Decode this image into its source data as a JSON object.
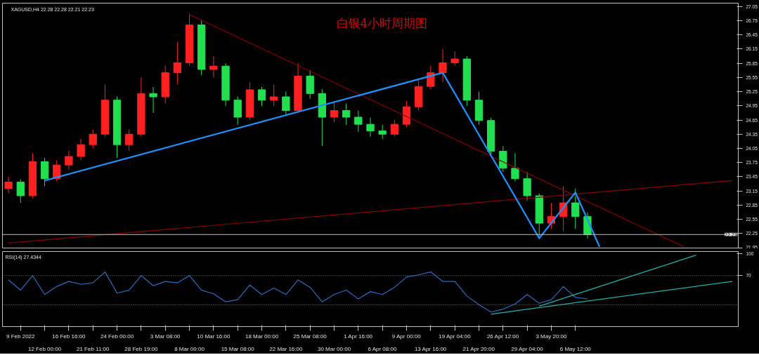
{
  "chart_data": [
    {
      "type": "candlestick",
      "title": "白银4小时周期图",
      "annotations": [
        "XAGUSD,H4 22.28 22.28 22.21 22.23"
      ],
      "categories": [
        null,
        null,
        null,
        null,
        null,
        null,
        null,
        null,
        null,
        null,
        null,
        null,
        null,
        null,
        null,
        null,
        null,
        null,
        null,
        null,
        null,
        null,
        null,
        null,
        null,
        null,
        null,
        null,
        null,
        null,
        null,
        null,
        null,
        null,
        null,
        null,
        null,
        null,
        null,
        null,
        null,
        null,
        null,
        null,
        null,
        null,
        null,
        null,
        null,
        null,
        null,
        null,
        null,
        null,
        null,
        null,
        null,
        null,
        null,
        null,
        null
      ],
      "ohlc": [
        [
          23.2,
          23.45,
          23.1,
          23.34
        ],
        [
          23.34,
          23.4,
          22.9,
          23.05
        ],
        [
          23.05,
          23.95,
          23.0,
          23.77
        ],
        [
          23.77,
          23.85,
          23.25,
          23.41
        ],
        [
          23.41,
          23.8,
          23.35,
          23.7
        ],
        [
          23.7,
          24.0,
          23.6,
          23.88
        ],
        [
          23.88,
          24.25,
          23.8,
          24.13
        ],
        [
          24.13,
          24.45,
          24.05,
          24.35
        ],
        [
          24.35,
          25.4,
          24.3,
          25.07
        ],
        [
          25.07,
          25.15,
          23.85,
          24.13
        ],
        [
          24.13,
          24.45,
          24.0,
          24.35
        ],
        [
          24.35,
          25.55,
          24.3,
          25.21
        ],
        [
          25.21,
          25.35,
          24.8,
          25.14
        ],
        [
          25.14,
          25.8,
          25.0,
          25.65
        ],
        [
          25.65,
          26.3,
          25.4,
          25.86
        ],
        [
          25.86,
          26.9,
          25.8,
          26.66
        ],
        [
          26.66,
          26.75,
          25.6,
          25.72
        ],
        [
          25.72,
          26.0,
          25.55,
          25.79
        ],
        [
          25.79,
          25.85,
          24.95,
          25.07
        ],
        [
          25.07,
          25.15,
          24.55,
          24.71
        ],
        [
          24.71,
          25.45,
          24.65,
          25.29
        ],
        [
          25.29,
          25.35,
          24.95,
          25.07
        ],
        [
          25.07,
          25.4,
          24.95,
          25.14
        ],
        [
          25.14,
          25.25,
          24.75,
          24.85
        ],
        [
          24.85,
          25.85,
          24.8,
          25.58
        ],
        [
          25.58,
          25.7,
          25.1,
          25.21
        ],
        [
          25.21,
          25.3,
          24.1,
          24.71
        ],
        [
          24.71,
          25.05,
          24.6,
          24.85
        ],
        [
          24.85,
          25.0,
          24.55,
          24.71
        ],
        [
          24.71,
          24.85,
          24.4,
          24.56
        ],
        [
          24.56,
          24.7,
          24.3,
          24.42
        ],
        [
          24.42,
          24.55,
          24.25,
          24.35
        ],
        [
          24.35,
          24.65,
          24.3,
          24.56
        ],
        [
          24.56,
          25.05,
          24.5,
          24.93
        ],
        [
          24.93,
          25.5,
          24.85,
          25.36
        ],
        [
          25.36,
          25.8,
          25.3,
          25.65
        ],
        [
          25.65,
          26.15,
          25.45,
          25.86
        ],
        [
          25.86,
          26.1,
          25.8,
          25.94
        ],
        [
          25.94,
          26.0,
          24.95,
          25.07
        ],
        [
          25.07,
          25.25,
          24.55,
          24.64
        ],
        [
          24.64,
          24.7,
          23.9,
          23.99
        ],
        [
          23.99,
          24.1,
          23.55,
          23.63
        ],
        [
          23.63,
          23.95,
          23.35,
          23.41
        ],
        [
          23.41,
          23.55,
          22.95,
          23.05
        ],
        [
          23.05,
          23.1,
          22.2,
          22.47
        ],
        [
          22.47,
          22.9,
          22.35,
          22.61
        ],
        [
          22.61,
          23.25,
          22.3,
          22.9
        ],
        [
          22.9,
          23.2,
          22.35,
          22.61
        ],
        [
          22.61,
          22.7,
          22.15,
          22.23
        ],
        null,
        null,
        null,
        null,
        null,
        null,
        null,
        null,
        null,
        null,
        null,
        null
      ],
      "colors": [
        "#ff2020",
        "#20e050",
        "#ff2020",
        "#20e050",
        "#ff2020",
        "#ff2020",
        "#ff2020",
        "#ff2020",
        "#ff2020",
        "#20e050",
        "#ff2020",
        "#ff2020",
        "#20e050",
        "#ff2020",
        "#ff2020",
        "#ff2020",
        "#20e050",
        "#ff2020",
        "#20e050",
        "#20e050",
        "#ff2020",
        "#20e050",
        "#ff2020",
        "#20e050",
        "#ff2020",
        "#20e050",
        "#20e050",
        "#ff2020",
        "#20e050",
        "#20e050",
        "#20e050",
        "#20e050",
        "#ff2020",
        "#ff2020",
        "#ff2020",
        "#ff2020",
        "#ff2020",
        "#ff2020",
        "#20e050",
        "#20e050",
        "#20e050",
        "#20e050",
        "#20e050",
        "#20e050",
        "#20e050",
        "#ff2020",
        "#ff2020",
        "#20e050",
        "#20e050",
        null,
        null,
        null,
        null,
        null,
        null,
        null,
        null,
        null,
        null,
        null,
        null
      ],
      "series": [
        {
          "type": "line",
          "color": "#8b0000",
          "values": [
            null,
            null,
            null,
            null,
            null,
            null,
            null,
            null,
            null,
            null,
            null,
            null,
            null,
            null,
            null,
            26.88,
            null,
            null,
            null,
            null,
            null,
            null,
            null,
            null,
            null,
            null,
            null,
            null,
            null,
            null,
            null,
            null,
            null,
            null,
            null,
            null,
            null,
            null,
            null,
            null,
            null,
            null,
            null,
            null,
            null,
            null,
            null,
            null,
            null,
            null,
            null,
            null,
            null,
            null,
            null,
            null,
            21.97,
            null,
            null,
            null,
            null
          ]
        },
        {
          "type": "line",
          "color": "#8b0000",
          "values": [
            22.05,
            null,
            null,
            null,
            null,
            null,
            null,
            null,
            null,
            null,
            null,
            null,
            null,
            null,
            null,
            null,
            null,
            null,
            null,
            null,
            null,
            null,
            null,
            null,
            null,
            null,
            null,
            null,
            null,
            null,
            null,
            null,
            null,
            null,
            null,
            null,
            null,
            null,
            null,
            null,
            null,
            null,
            null,
            null,
            null,
            null,
            null,
            null,
            null,
            null,
            null,
            null,
            null,
            null,
            null,
            null,
            null,
            null,
            null,
            null,
            23.37
          ]
        },
        {
          "type": "line",
          "color": "#1e90ff",
          "values": [
            null,
            null,
            null,
            23.37,
            null,
            null,
            null,
            null,
            null,
            null,
            null,
            null,
            null,
            null,
            null,
            null,
            null,
            null,
            null,
            null,
            null,
            null,
            null,
            null,
            null,
            null,
            null,
            null,
            null,
            null,
            null,
            null,
            null,
            null,
            null,
            null,
            25.65,
            null,
            null,
            null,
            null,
            null,
            null,
            null,
            null,
            null,
            null,
            null,
            null,
            null,
            null,
            null,
            null,
            null,
            null,
            null,
            null,
            null,
            null,
            null,
            null
          ]
        },
        {
          "type": "line",
          "color": "#1e90ff",
          "values": [
            null,
            null,
            null,
            null,
            null,
            null,
            null,
            null,
            null,
            null,
            null,
            null,
            null,
            null,
            null,
            null,
            null,
            null,
            null,
            null,
            null,
            null,
            null,
            null,
            null,
            null,
            null,
            null,
            null,
            null,
            null,
            null,
            null,
            null,
            null,
            null,
            25.65,
            null,
            null,
            null,
            null,
            null,
            null,
            null,
            22.15,
            null,
            null,
            23.12,
            null,
            21.97,
            null,
            null,
            null,
            null,
            null,
            null,
            null,
            null,
            null,
            null,
            null
          ]
        }
      ],
      "ref_lines": [
        {
          "axis": "y",
          "value": 22.23,
          "label": "22.23",
          "color": "#c0c0c0"
        }
      ],
      "ylim": [
        21.93,
        27.12
      ],
      "yticks": [
        21.95,
        22.25,
        22.55,
        22.85,
        23.15,
        23.45,
        23.75,
        24.05,
        24.35,
        24.65,
        24.95,
        25.25,
        25.55,
        25.85,
        26.15,
        26.45,
        26.75,
        27.05
      ],
      "tick_labels": "y",
      "grid": false
    },
    {
      "type": "line",
      "title": "RSI(14) 27.4344",
      "categories": [
        null,
        "9 Feb 2022",
        null,
        "12 Feb 00:00",
        null,
        "16 Feb 16:00",
        null,
        "21 Feb 11:00",
        null,
        "24 Feb 00:00",
        null,
        "28 Feb 19:00",
        null,
        "3 Mar 08:00",
        null,
        "8 Mar 00:00",
        null,
        "10 Mar 16:00",
        null,
        "15 Mar 08:00",
        null,
        "18 Mar 00:00",
        null,
        "22 Mar 16:00",
        null,
        "25 Mar 08:00",
        null,
        "30 Mar 00:00",
        null,
        "1 Apr 16:00",
        null,
        "6 Apr 08:00",
        null,
        "9 Apr 00:00",
        null,
        "13 Apr 16:00",
        null,
        "19 Apr 04:00",
        null,
        "21 Apr 20:00",
        null,
        "26 Apr 12:00",
        null,
        "29 Apr 04:00",
        null,
        "3 May 20:00",
        null,
        "6 May 12:00",
        null,
        null,
        null,
        null,
        null,
        null,
        null,
        null,
        null,
        null,
        null,
        null,
        null
      ],
      "series": [
        {
          "color": "#2a6cc0",
          "values": [
            64,
            50,
            70,
            44,
            55,
            62,
            58,
            60,
            75,
            46,
            50,
            70,
            56,
            62,
            60,
            70,
            50,
            45,
            34,
            37,
            57,
            44,
            53,
            44,
            64,
            54,
            34,
            44,
            50,
            38,
            48,
            44,
            54,
            68,
            71,
            75,
            62,
            62,
            42,
            30,
            20,
            24,
            31,
            44,
            32,
            37,
            55,
            40,
            38,
            null,
            null,
            null,
            null,
            null,
            null,
            null,
            null,
            null,
            null,
            null,
            null
          ]
        },
        {
          "color": "#20b2aa",
          "values": [
            null,
            null,
            null,
            null,
            null,
            null,
            null,
            null,
            null,
            null,
            null,
            null,
            null,
            null,
            null,
            null,
            null,
            null,
            null,
            null,
            null,
            null,
            null,
            null,
            null,
            null,
            null,
            null,
            null,
            null,
            null,
            null,
            null,
            null,
            null,
            null,
            null,
            null,
            null,
            null,
            17,
            null,
            null,
            null,
            null,
            null,
            null,
            null,
            null,
            null,
            null,
            null,
            null,
            null,
            null,
            null,
            null,
            null,
            null,
            null,
            62
          ]
        },
        {
          "color": "#20b2aa",
          "values": [
            null,
            null,
            null,
            null,
            null,
            null,
            null,
            null,
            null,
            null,
            null,
            null,
            null,
            null,
            null,
            null,
            null,
            null,
            null,
            null,
            null,
            null,
            null,
            null,
            null,
            null,
            null,
            null,
            null,
            null,
            null,
            null,
            null,
            null,
            null,
            null,
            null,
            null,
            null,
            null,
            null,
            null,
            null,
            null,
            28,
            null,
            null,
            null,
            null,
            null,
            null,
            null,
            null,
            null,
            null,
            null,
            null,
            98,
            null,
            null,
            null
          ]
        }
      ],
      "ref_lines": [
        {
          "axis": "y",
          "value": 70,
          "label": null,
          "line_style": "dotted",
          "color": "#808080"
        },
        {
          "axis": "y",
          "value": 30,
          "label": null,
          "line_style": "dotted",
          "color": "#808080"
        }
      ],
      "ylim": [
        0,
        103
      ],
      "yticks": [
        70,
        100
      ],
      "grid": false
    }
  ]
}
